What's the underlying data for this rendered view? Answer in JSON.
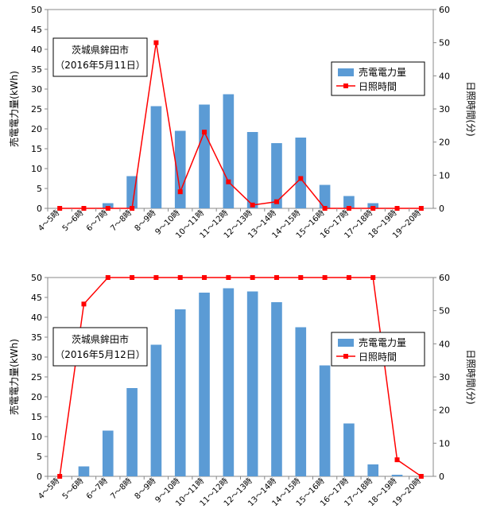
{
  "chart_data": [
    {
      "type": "bar",
      "categories": [
        "4～5時",
        "5～6時",
        "6～7時",
        "7～8時",
        "8～9時",
        "9～10時",
        "10～11時",
        "11～12時",
        "12～13時",
        "13～14時",
        "14～15時",
        "15～16時",
        "16～17時",
        "17～18時",
        "18～19時",
        "19～20時"
      ],
      "series": [
        {
          "name": "売電電力量",
          "type": "bar",
          "axis": "left",
          "color": "#5b9bd5",
          "values": [
            0,
            0,
            1.3,
            8.1,
            25.7,
            19.5,
            26.1,
            28.7,
            19.2,
            16.4,
            17.8,
            5.9,
            3.1,
            1.3,
            0,
            0
          ]
        },
        {
          "name": "日照時間",
          "type": "line",
          "axis": "right",
          "color": "#ff0000",
          "values": [
            0,
            0,
            0,
            0,
            50,
            5,
            23,
            8,
            1,
            2,
            9,
            0,
            0,
            0,
            0,
            0
          ]
        }
      ],
      "info": [
        "茨城県鉾田市",
        "（2016年5月11日）"
      ],
      "ylabel": "売電電力量(kWh)",
      "y2label": "日照時間(分)",
      "ylim": [
        0,
        50
      ],
      "y2lim": [
        0,
        60
      ],
      "yticks": [
        0,
        5,
        10,
        15,
        20,
        25,
        30,
        35,
        40,
        45,
        50
      ],
      "y2ticks": [
        0,
        10,
        20,
        30,
        40,
        50,
        60
      ],
      "legend": "right"
    },
    {
      "type": "bar",
      "categories": [
        "4～5時",
        "5～6時",
        "6～7時",
        "7～8時",
        "8～9時",
        "9～10時",
        "10～11時",
        "11～12時",
        "12～13時",
        "13～14時",
        "14～15時",
        "15～16時",
        "16～17時",
        "17～18時",
        "18～19時",
        "19～20時"
      ],
      "series": [
        {
          "name": "売電電力量",
          "type": "bar",
          "axis": "left",
          "color": "#5b9bd5",
          "values": [
            0,
            2.5,
            11.5,
            22.2,
            33.1,
            42.0,
            46.2,
            47.3,
            46.5,
            43.8,
            37.5,
            27.9,
            13.3,
            3.0,
            0.4,
            0
          ]
        },
        {
          "name": "日照時間",
          "type": "line",
          "axis": "right",
          "color": "#ff0000",
          "values": [
            0,
            52,
            60,
            60,
            60,
            60,
            60,
            60,
            60,
            60,
            60,
            60,
            60,
            60,
            5,
            0
          ]
        }
      ],
      "info": [
        "茨城県鉾田市",
        "（2016年5月12日）"
      ],
      "ylabel": "売電電力量(kWh)",
      "y2label": "日照時間(分)",
      "ylim": [
        0,
        50
      ],
      "y2lim": [
        0,
        60
      ],
      "yticks": [
        0,
        5,
        10,
        15,
        20,
        25,
        30,
        35,
        40,
        45,
        50
      ],
      "y2ticks": [
        0,
        10,
        20,
        30,
        40,
        50,
        60
      ],
      "legend": "right"
    }
  ]
}
